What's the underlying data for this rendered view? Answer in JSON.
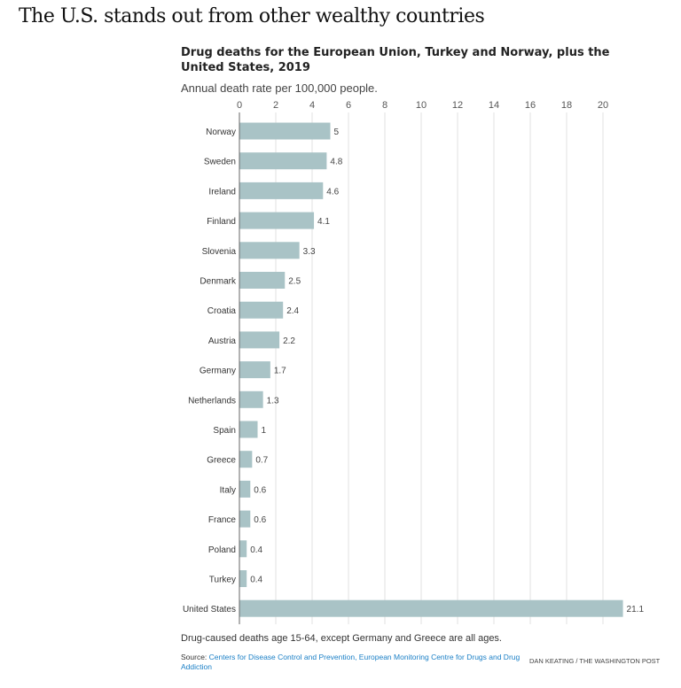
{
  "headline": "The U.S. stands out from other wealthy countries",
  "chart_data": {
    "type": "bar",
    "orientation": "horizontal",
    "title": "Drug deaths for the European Union, Turkey and Norway, plus the United States, 2019",
    "subtitle": "Annual death rate per 100,000 people.",
    "categories": [
      "Norway",
      "Sweden",
      "Ireland",
      "Finland",
      "Slovenia",
      "Denmark",
      "Croatia",
      "Austria",
      "Germany",
      "Netherlands",
      "Spain",
      "Greece",
      "Italy",
      "France",
      "Poland",
      "Turkey",
      "United States"
    ],
    "values": [
      5,
      4.8,
      4.6,
      4.1,
      3.3,
      2.5,
      2.4,
      2.2,
      1.7,
      1.3,
      1,
      0.7,
      0.6,
      0.6,
      0.4,
      0.4,
      21.1
    ],
    "value_labels": [
      "5",
      "4.8",
      "4.6",
      "4.1",
      "3.3",
      "2.5",
      "2.4",
      "2.2",
      "1.7",
      "1.3",
      "1",
      "0.7",
      "0.6",
      "0.6",
      "0.4",
      "0.4",
      "21.1"
    ],
    "xticks": [
      0,
      2,
      4,
      6,
      8,
      10,
      12,
      14,
      16,
      18,
      20
    ],
    "xlim": [
      0,
      21.1
    ],
    "grid": true,
    "axis_position": "top",
    "bar_color": "#a9c3c6"
  },
  "footnote": "Drug-caused deaths age 15-64, except Germany and Greece are all ages.",
  "source": {
    "label": "Source: ",
    "link_text": "Centers for Disease Control and Prevention, European Monitoring Centre for Drugs and Drug Addiction"
  },
  "credit": "DAN KEATING / THE WASHINGTON POST"
}
